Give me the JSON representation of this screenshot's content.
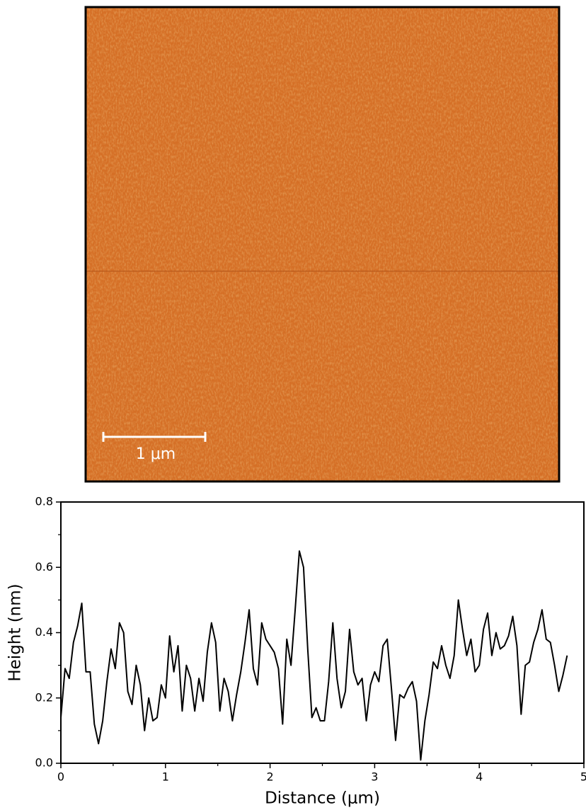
{
  "image": {
    "scale_bar": {
      "label": "1 μm"
    }
  },
  "chart_data": {
    "type": "line",
    "xlabel": "Distance (μm)",
    "ylabel": "Height (nm)",
    "x": [
      0,
      0.04,
      0.08,
      0.12,
      0.16,
      0.2,
      0.24,
      0.28,
      0.32,
      0.36,
      0.4,
      0.44,
      0.48,
      0.52,
      0.56,
      0.6,
      0.64,
      0.68,
      0.72,
      0.76,
      0.8,
      0.84,
      0.88,
      0.92,
      0.96,
      1.0,
      1.04,
      1.08,
      1.12,
      1.16,
      1.2,
      1.24,
      1.28,
      1.32,
      1.36,
      1.4,
      1.44,
      1.48,
      1.52,
      1.56,
      1.6,
      1.64,
      1.68,
      1.72,
      1.76,
      1.8,
      1.84,
      1.88,
      1.92,
      1.96,
      2.0,
      2.04,
      2.08,
      2.12,
      2.16,
      2.2,
      2.24,
      2.28,
      2.32,
      2.36,
      2.4,
      2.44,
      2.48,
      2.52,
      2.56,
      2.6,
      2.64,
      2.68,
      2.72,
      2.76,
      2.8,
      2.84,
      2.88,
      2.92,
      2.96,
      3.0,
      3.04,
      3.08,
      3.12,
      3.16,
      3.2,
      3.24,
      3.28,
      3.32,
      3.36,
      3.4,
      3.44,
      3.48,
      3.52,
      3.56,
      3.6,
      3.64,
      3.68,
      3.72,
      3.76,
      3.8,
      3.84,
      3.88,
      3.92,
      3.96,
      4.0,
      4.04,
      4.08,
      4.12,
      4.16,
      4.2,
      4.24,
      4.28,
      4.32,
      4.36,
      4.4,
      4.44,
      4.48,
      4.52,
      4.56,
      4.6,
      4.64,
      4.68,
      4.72,
      4.76,
      4.8,
      4.84
    ],
    "values": [
      0.14,
      0.29,
      0.26,
      0.37,
      0.42,
      0.49,
      0.28,
      0.28,
      0.12,
      0.06,
      0.13,
      0.25,
      0.35,
      0.29,
      0.43,
      0.4,
      0.22,
      0.18,
      0.3,
      0.24,
      0.1,
      0.2,
      0.13,
      0.14,
      0.24,
      0.2,
      0.39,
      0.28,
      0.36,
      0.16,
      0.3,
      0.26,
      0.16,
      0.26,
      0.19,
      0.34,
      0.43,
      0.37,
      0.16,
      0.26,
      0.22,
      0.13,
      0.21,
      0.28,
      0.37,
      0.47,
      0.29,
      0.24,
      0.43,
      0.38,
      0.36,
      0.34,
      0.29,
      0.12,
      0.38,
      0.3,
      0.47,
      0.65,
      0.6,
      0.35,
      0.14,
      0.17,
      0.13,
      0.13,
      0.25,
      0.43,
      0.26,
      0.17,
      0.22,
      0.41,
      0.28,
      0.24,
      0.26,
      0.13,
      0.24,
      0.28,
      0.25,
      0.36,
      0.38,
      0.23,
      0.07,
      0.21,
      0.2,
      0.23,
      0.25,
      0.19,
      0.01,
      0.13,
      0.21,
      0.31,
      0.29,
      0.36,
      0.3,
      0.26,
      0.33,
      0.5,
      0.41,
      0.33,
      0.38,
      0.28,
      0.3,
      0.41,
      0.46,
      0.33,
      0.4,
      0.35,
      0.36,
      0.39,
      0.45,
      0.36,
      0.15,
      0.3,
      0.31,
      0.37,
      0.41,
      0.47,
      0.38,
      0.37,
      0.3,
      0.22,
      0.27,
      0.33
    ],
    "color": "#000000",
    "xlim": [
      0,
      5
    ],
    "xticks": [
      0,
      1,
      2,
      3,
      4,
      5
    ],
    "xminor_ticks": [
      0.5,
      1.5,
      2.5,
      3.5,
      4.5
    ],
    "ylim": [
      0,
      0.8
    ],
    "yticks": [
      {
        "value": 0,
        "label": "0.0"
      },
      0.2,
      0.4,
      0.6,
      0.8
    ],
    "yminor_ticks": [
      0.1,
      0.3,
      0.5,
      0.7
    ]
  }
}
